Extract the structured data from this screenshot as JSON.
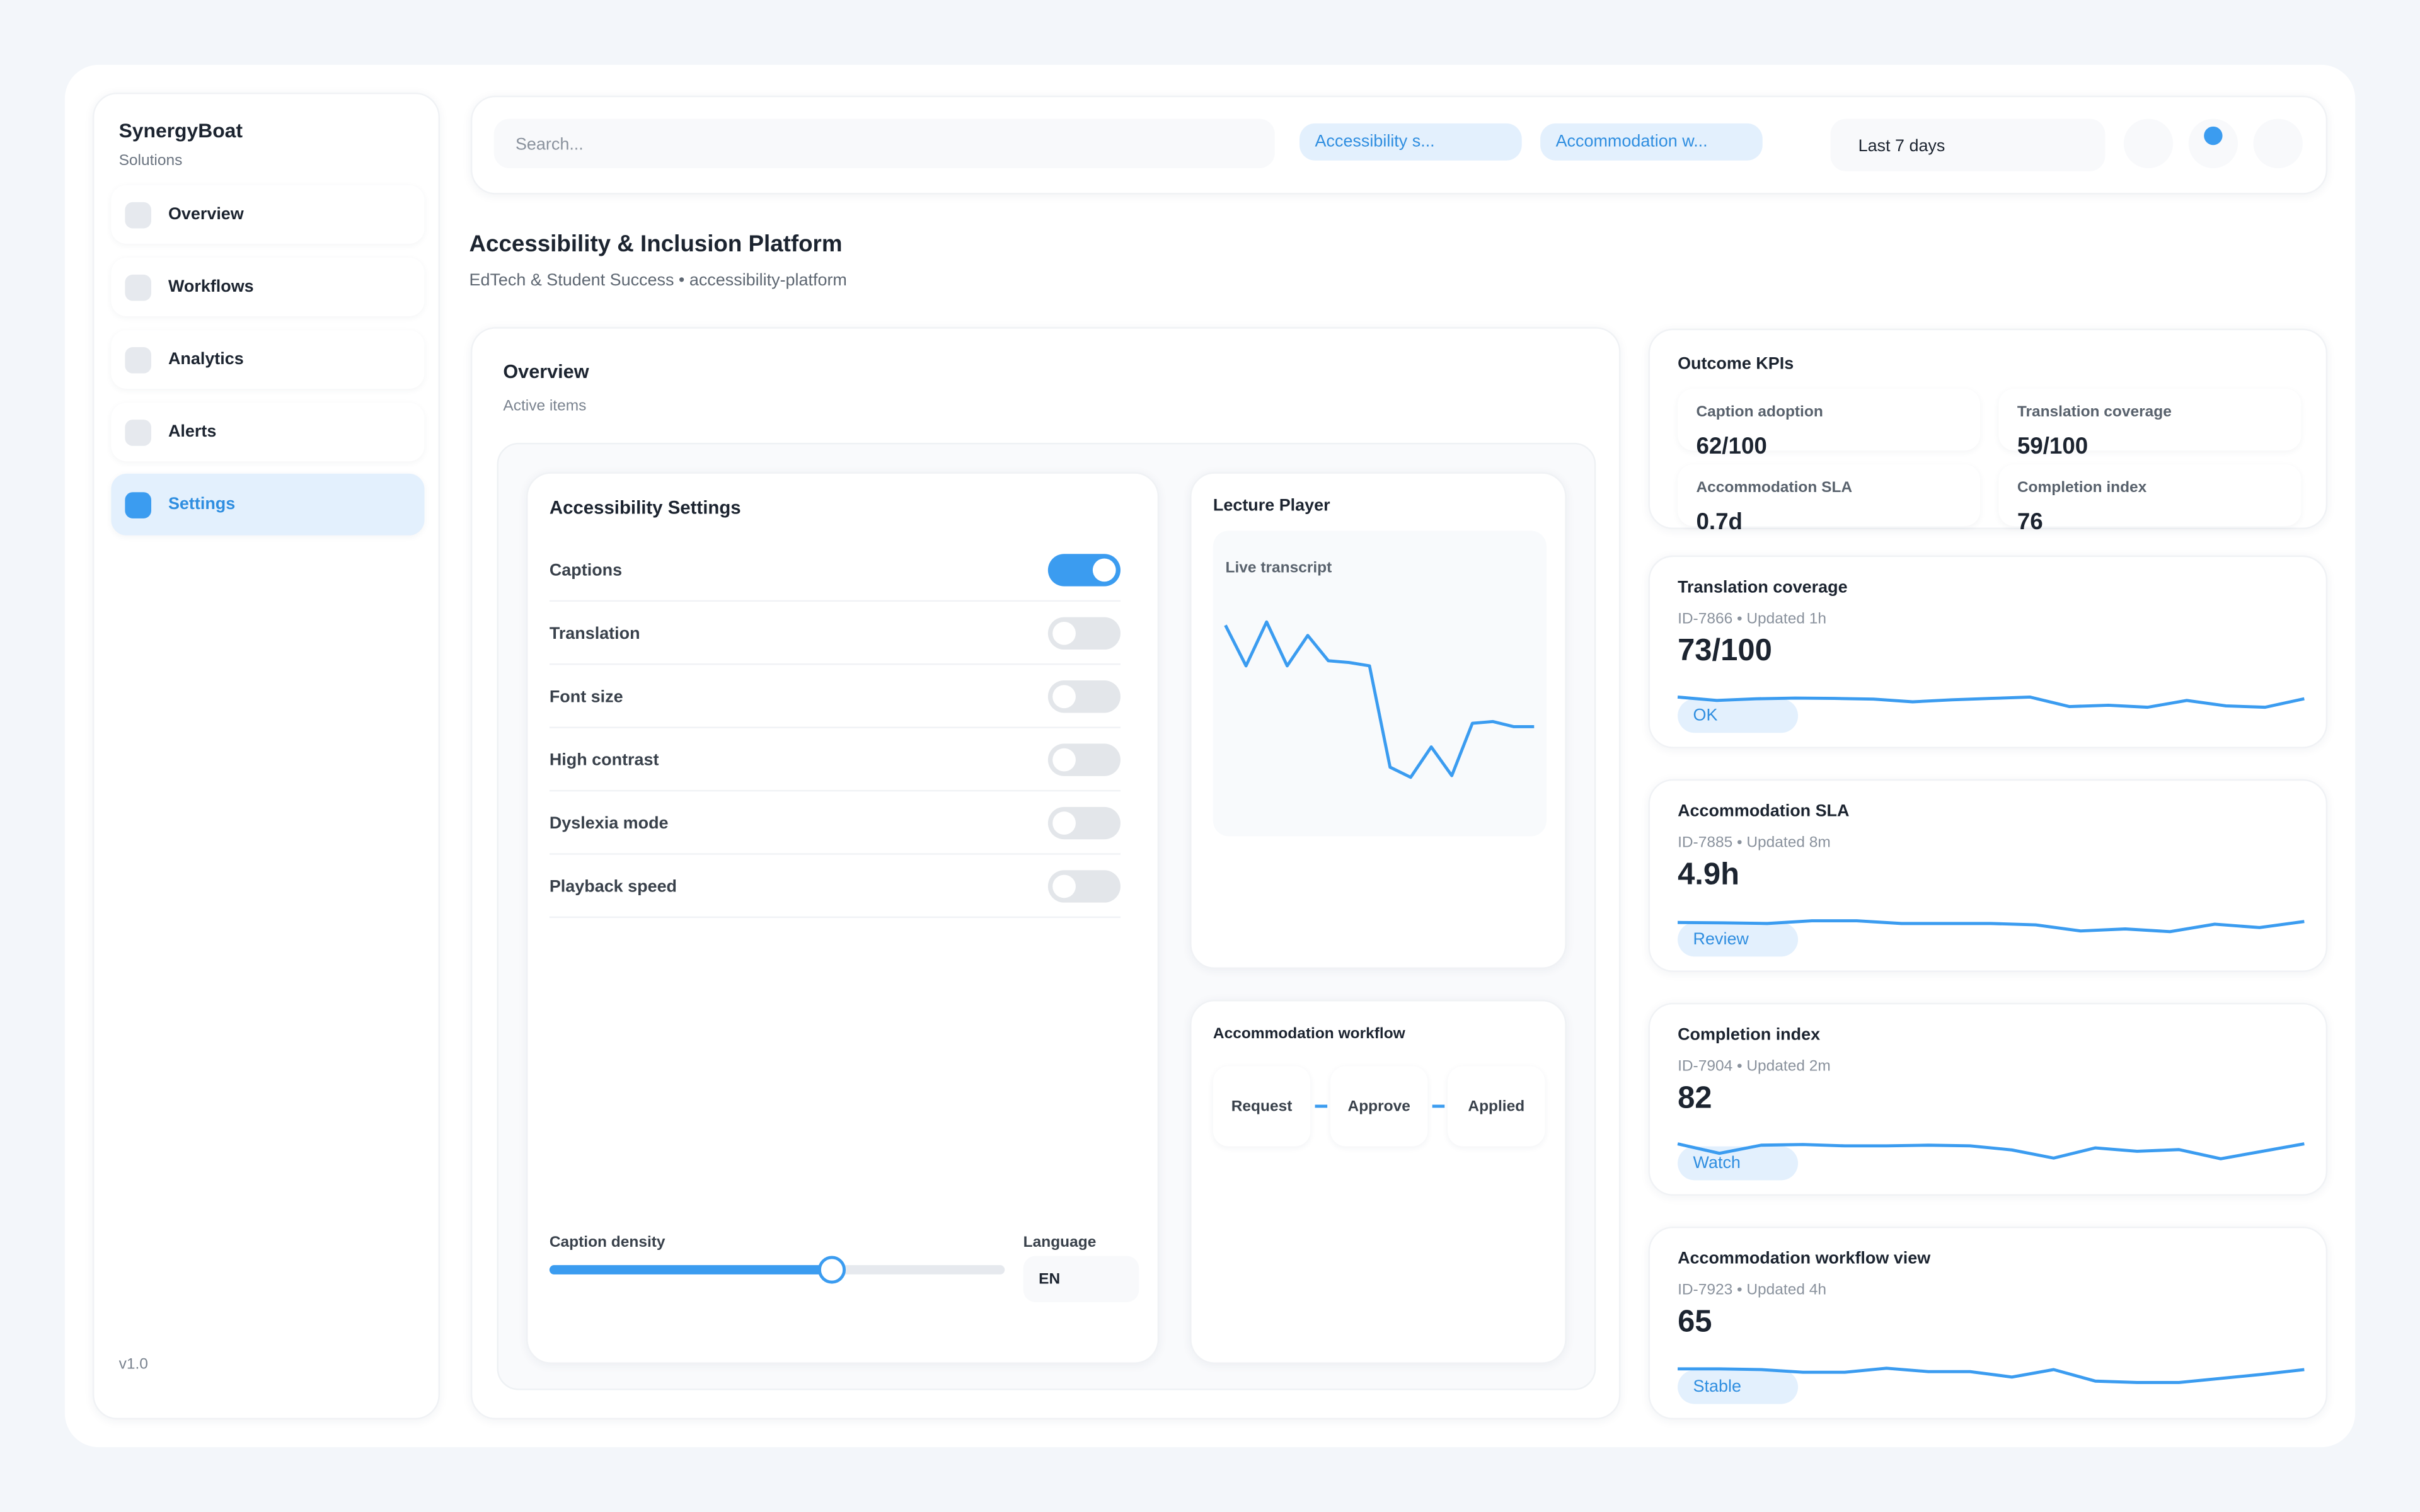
{
  "sidebar": {
    "brand": "SynergyBoat",
    "subtitle": "Solutions",
    "items": [
      {
        "label": "Overview"
      },
      {
        "label": "Workflows"
      },
      {
        "label": "Analytics"
      },
      {
        "label": "Alerts"
      },
      {
        "label": "Settings",
        "active": true
      }
    ],
    "version": "v1.0"
  },
  "topbar": {
    "search_placeholder": "Search...",
    "chips": [
      "Accessibility s...",
      "Accommodation w..."
    ],
    "range": "Last 7 days"
  },
  "page": {
    "title": "Accessibility & Inclusion Platform",
    "subtitle": "EdTech & Student Success • accessibility-platform"
  },
  "overview": {
    "title": "Overview",
    "subtitle": "Active items"
  },
  "settings": {
    "title": "Accessibility Settings",
    "toggles": [
      {
        "label": "Captions",
        "on": true
      },
      {
        "label": "Translation",
        "on": false
      },
      {
        "label": "Font size",
        "on": false
      },
      {
        "label": "High contrast",
        "on": false
      },
      {
        "label": "Dyslexia mode",
        "on": false
      },
      {
        "label": "Playback speed",
        "on": false
      }
    ],
    "caption_density": {
      "label": "Caption density",
      "value": 0.62
    },
    "language": {
      "label": "Language",
      "value": "EN"
    }
  },
  "player": {
    "title": "Lecture Player",
    "chart_label": "Live transcript",
    "series": [
      82,
      58,
      84,
      58,
      76,
      61,
      60,
      58,
      -2,
      -8,
      10,
      -7,
      24,
      25,
      22,
      22
    ]
  },
  "workflow": {
    "title": "Accommodation workflow",
    "steps": [
      "Request",
      "Approve",
      "Applied"
    ]
  },
  "kpis": {
    "title": "Outcome KPIs",
    "items": [
      {
        "label": "Caption adoption",
        "value": "62/100"
      },
      {
        "label": "Translation coverage",
        "value": "59/100"
      },
      {
        "label": "Accommodation SLA",
        "value": "0.7d"
      },
      {
        "label": "Completion index",
        "value": "76"
      }
    ]
  },
  "metrics": [
    {
      "title": "Translation coverage",
      "meta": "ID-7866 • Updated 1h",
      "value": "73/100",
      "badge": "OK",
      "series": [
        60,
        50,
        55,
        57,
        56,
        54,
        46,
        52,
        56,
        60,
        32,
        36,
        30,
        50,
        34,
        30,
        55
      ]
    },
    {
      "title": "Accommodation SLA",
      "meta": "ID-7885 • Updated 8m",
      "value": "4.9h",
      "badge": "Review",
      "series": [
        55,
        54,
        52,
        60,
        60,
        52,
        52,
        52,
        48,
        30,
        36,
        28,
        50,
        40,
        58
      ]
    },
    {
      "title": "Completion index",
      "meta": "ID-7904 • Updated 2m",
      "value": "82",
      "badge": "Watch",
      "series": [
        62,
        34,
        58,
        60,
        56,
        56,
        58,
        56,
        44,
        20,
        50,
        40,
        45,
        18,
        40,
        62
      ]
    },
    {
      "title": "Accommodation workflow view",
      "meta": "ID-7923 • Updated 4h",
      "value": "65",
      "badge": "Stable",
      "series": [
        58,
        58,
        56,
        48,
        48,
        60,
        50,
        50,
        34,
        56,
        22,
        18,
        18,
        30,
        42,
        56
      ]
    }
  ],
  "colors": {
    "accent": "#3b9cf0",
    "accent_bg": "#e3f0fd"
  }
}
